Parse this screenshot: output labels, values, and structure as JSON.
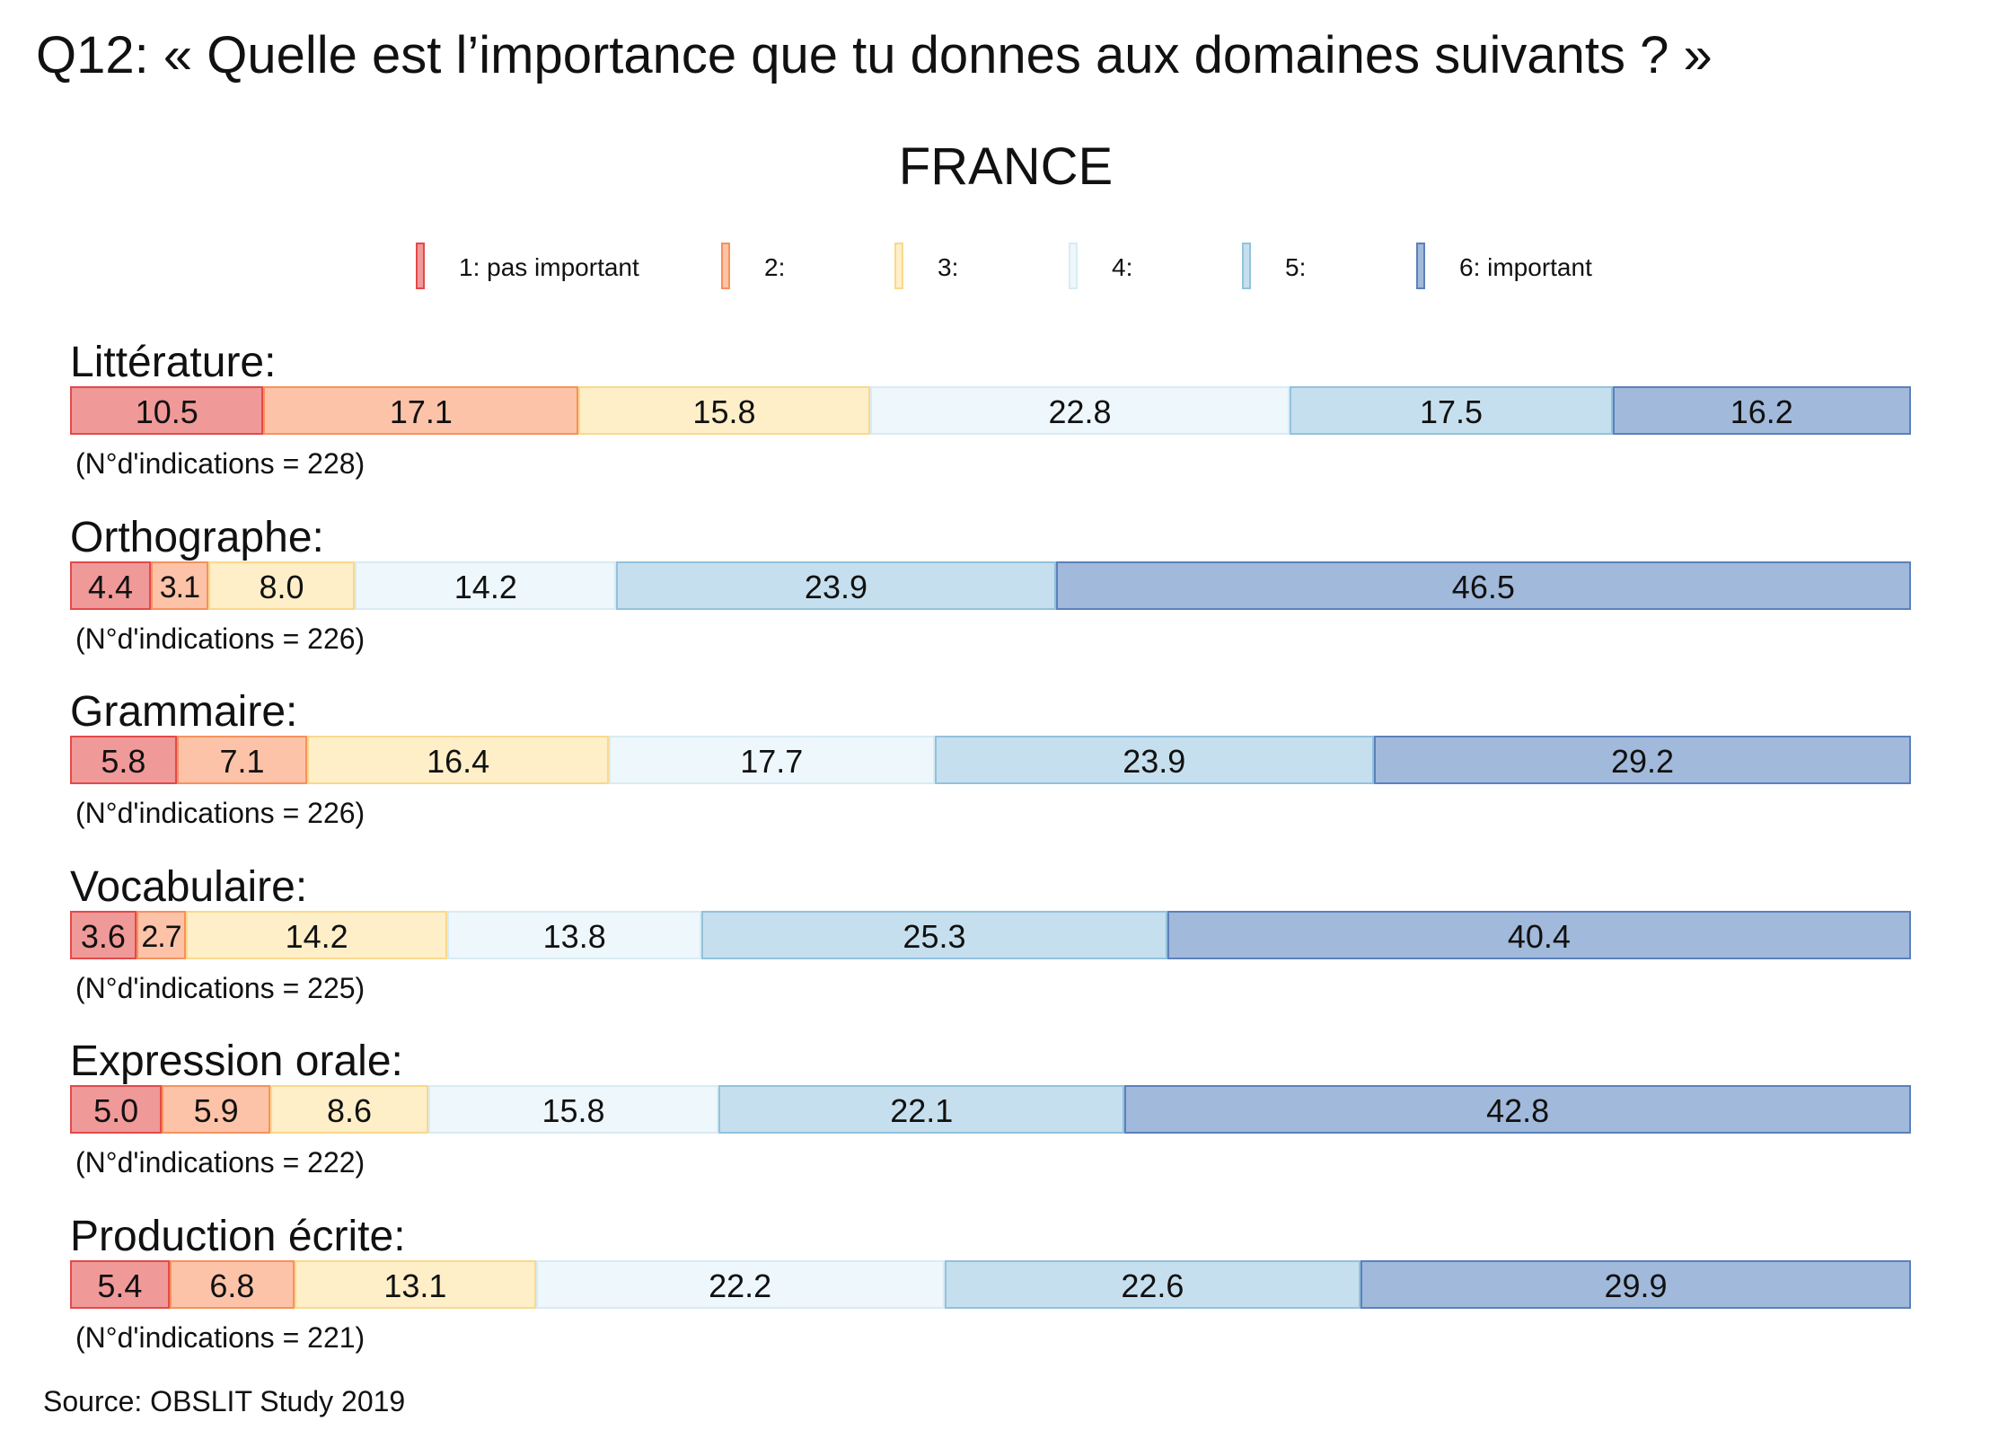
{
  "chart_data": {
    "type": "bar",
    "stacked": true,
    "orientation": "horizontal",
    "title": "Q12: « Quelle est l’importance que tu donnes aux domaines suivants ? »",
    "subtitle": "FRANCE",
    "source": "Source: OBSLIT Study 2019",
    "legend_placement": "top-center",
    "legend": [
      {
        "label": "1: pas important",
        "fill": "#f09999",
        "stroke": "#e34a4a"
      },
      {
        "label": "2:",
        "fill": "#fdc3a8",
        "stroke": "#f6925d"
      },
      {
        "label": "3:",
        "fill": "#feefc8",
        "stroke": "#fad88c"
      },
      {
        "label": "4:",
        "fill": "#eef7fb",
        "stroke": "#d9ebf4"
      },
      {
        "label": "5:",
        "fill": "#c6dfee",
        "stroke": "#92c2dd"
      },
      {
        "label": "6: important",
        "fill": "#a1b9da",
        "stroke": "#5c81bb"
      }
    ],
    "rows": [
      {
        "label": "Littérature:",
        "count": "(N°d'indications = 228)",
        "values": [
          10.5,
          17.1,
          15.8,
          22.8,
          17.5,
          16.2
        ]
      },
      {
        "label": "Orthographe:",
        "count": "(N°d'indications = 226)",
        "values": [
          4.4,
          3.1,
          8.0,
          14.2,
          23.9,
          46.5
        ]
      },
      {
        "label": "Grammaire:",
        "count": "(N°d'indications = 226)",
        "values": [
          5.8,
          7.1,
          16.4,
          17.7,
          23.9,
          29.2
        ]
      },
      {
        "label": "Vocabulaire:",
        "count": "(N°d'indications = 225)",
        "values": [
          3.6,
          2.7,
          14.2,
          13.8,
          25.3,
          40.4
        ]
      },
      {
        "label": "Expression orale:",
        "count": "(N°d'indications = 222)",
        "values": [
          5.0,
          5.9,
          8.6,
          15.8,
          22.1,
          42.8
        ]
      },
      {
        "label": "Production écrite:",
        "count": "(N°d'indications = 221)",
        "values": [
          5.4,
          6.8,
          13.1,
          22.2,
          22.6,
          29.9
        ]
      }
    ]
  }
}
